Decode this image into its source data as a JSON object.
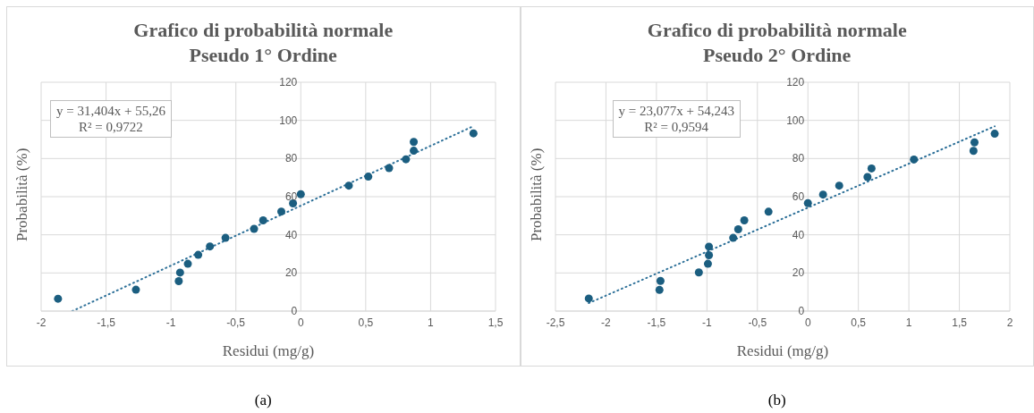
{
  "chart_data": [
    {
      "type": "scatter",
      "title": "Grafico di probabilità normale\nPseudo 1° Ordine",
      "xlabel": "Residui (mg/g)",
      "ylabel": "Probabilità (%)",
      "xlim": [
        -2,
        1.5
      ],
      "xticks": [
        -2,
        {
          "value": -1.5,
          "label": "-1,5"
        },
        -1,
        {
          "value": -0.5,
          "label": "-0,5"
        },
        0,
        {
          "value": 0.5,
          "label": "0,5"
        },
        1,
        {
          "value": 1.5,
          "label": "1,5"
        }
      ],
      "ylim": [
        0,
        120
      ],
      "yticks": [
        0,
        20,
        40,
        60,
        80,
        100,
        120
      ],
      "grid": true,
      "series": [
        {
          "color": "#1b5e80",
          "marker": "circle",
          "x": [
            -1.87,
            -1.27,
            -0.94,
            -0.93,
            -0.87,
            -0.79,
            -0.7,
            -0.58,
            -0.36,
            -0.29,
            -0.15,
            -0.06,
            0.0,
            0.37,
            0.52,
            0.68,
            0.81,
            0.87,
            0.87,
            1.33
          ],
          "values": [
            6.5,
            11.2,
            15.7,
            20.2,
            24.8,
            29.5,
            33.9,
            38.4,
            43.1,
            47.6,
            52.2,
            56.5,
            61.3,
            65.8,
            70.5,
            75.0,
            79.6,
            84.1,
            88.7,
            93.2
          ]
        },
        {
          "type": "line",
          "color": "#2e7199",
          "marker": "none",
          "line_style": "dotted",
          "x": [
            -1.76,
            1.33
          ],
          "values": [
            0,
            97.0
          ]
        }
      ],
      "annotations": [
        "y = 31,404x + 55,26\nR² = 0,9722",
        "(a)"
      ]
    },
    {
      "type": "scatter",
      "title": "Grafico di probabilità normale\nPseudo 2° Ordine",
      "xlabel": "Residui (mg/g)",
      "ylabel": "Probabilità (%)",
      "xlim": [
        -2.5,
        2
      ],
      "xticks": [
        {
          "value": -2.5,
          "label": "-2,5"
        },
        -2,
        {
          "value": -1.5,
          "label": "-1,5"
        },
        -1,
        {
          "value": -0.5,
          "label": "-0,5"
        },
        0,
        {
          "value": 0.5,
          "label": "0,5"
        },
        1,
        {
          "value": 1.5,
          "label": "1,5"
        },
        2
      ],
      "ylim": [
        0,
        120
      ],
      "yticks": [
        0,
        20,
        40,
        60,
        80,
        100,
        120
      ],
      "grid": true,
      "series": [
        {
          "color": "#1b5e80",
          "marker": "circle",
          "x": [
            -2.17,
            -1.47,
            -1.46,
            -1.08,
            -0.99,
            -0.98,
            -0.98,
            -0.74,
            -0.69,
            -0.63,
            -0.39,
            0.0,
            0.15,
            0.31,
            0.59,
            0.63,
            1.05,
            1.64,
            1.65,
            1.85
          ],
          "values": [
            6.6,
            11.1,
            15.8,
            20.3,
            24.8,
            29.3,
            33.8,
            38.4,
            42.9,
            47.6,
            52.1,
            56.6,
            61.1,
            65.8,
            70.3,
            74.8,
            79.5,
            84.0,
            88.5,
            93.0
          ]
        },
        {
          "type": "line",
          "color": "#2e7199",
          "marker": "none",
          "line_style": "dotted",
          "x": [
            -2.17,
            1.85
          ],
          "values": [
            4.2,
            96.9
          ]
        }
      ],
      "annotations": [
        "y = 23,077x + 54,243\nR² = 0,9594",
        "(b)"
      ]
    }
  ]
}
